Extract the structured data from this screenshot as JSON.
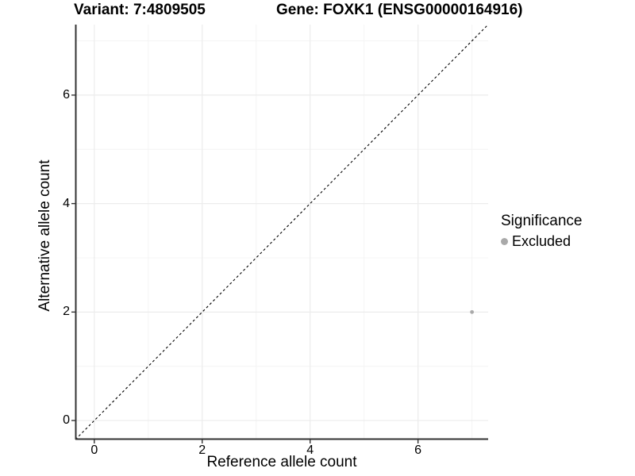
{
  "chart_data": {
    "type": "scatter",
    "titles": [
      "Variant: 7:4809505",
      "Gene: FOXK1 (ENSG00000164916)"
    ],
    "xlabel": "Reference allele count",
    "ylabel": "Alternative allele count",
    "legend_title": "Significance",
    "legend_position": "right",
    "xlim": [
      -0.35,
      7.3
    ],
    "ylim": [
      -0.35,
      7.3
    ],
    "x_ticks": [
      0,
      2,
      4,
      6
    ],
    "y_ticks": [
      0,
      2,
      4,
      6
    ],
    "x_minor_ticks": [
      1,
      3,
      5,
      7
    ],
    "y_minor_ticks": [
      1,
      3,
      5,
      7
    ],
    "grid": "major+minor",
    "series": [
      {
        "name": "Excluded",
        "color": "#a9a9a9",
        "points": [
          {
            "x": 7,
            "y": 2
          }
        ]
      }
    ],
    "reference_line": {
      "type": "identity",
      "slope": 1,
      "intercept": 0,
      "style": "dashed",
      "color": "#000000"
    }
  },
  "style": {
    "background": "#ffffff",
    "grid_major_color": "#ececec",
    "grid_minor_color": "#f4f4f4",
    "axis_line_color": "#333333",
    "tick_color": "#333333",
    "text_color": "#000000",
    "point_color": "#a9a9a9"
  }
}
